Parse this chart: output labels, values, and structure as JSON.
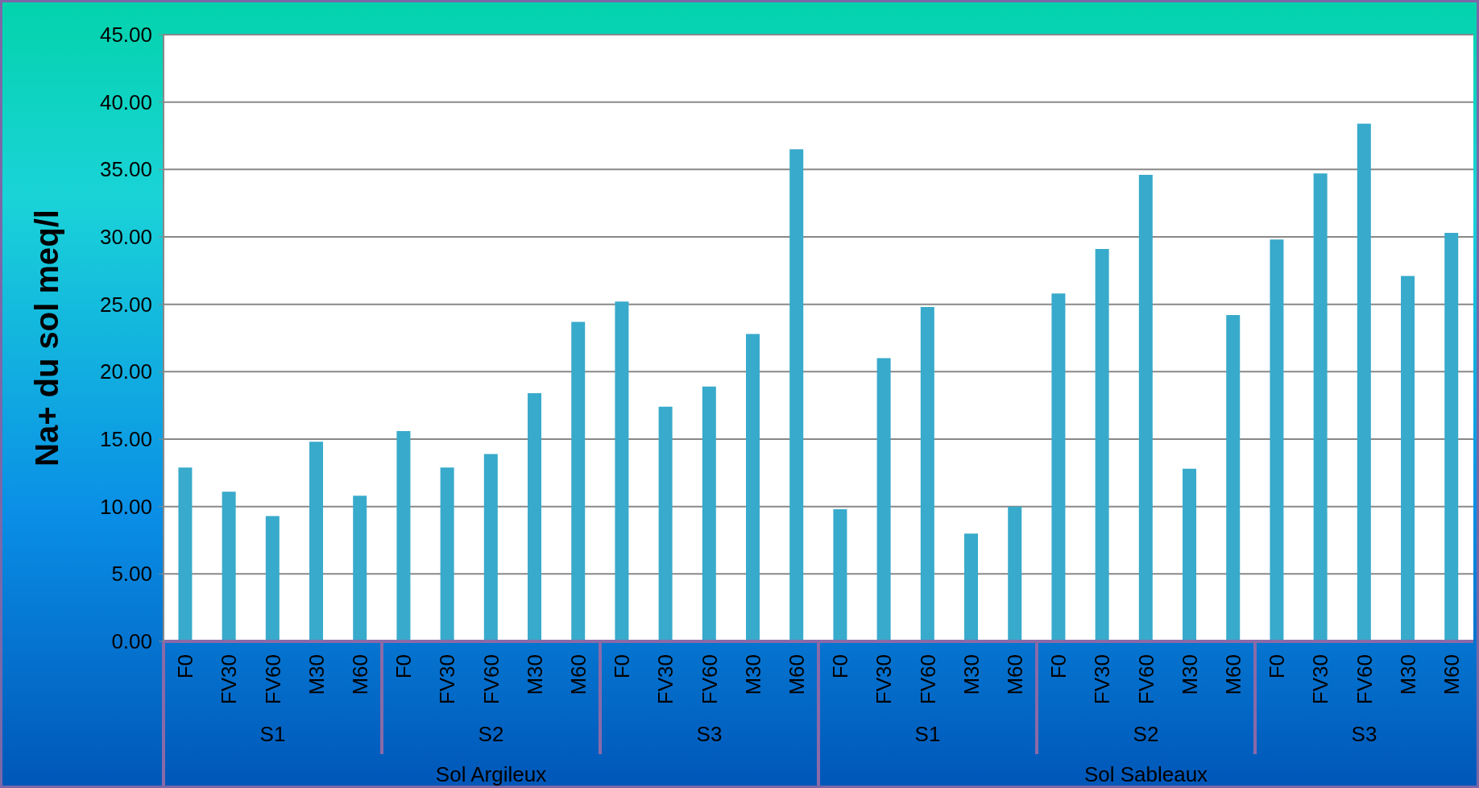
{
  "chart_data": {
    "type": "bar",
    "ylabel": "Na+ du sol meq/l",
    "categories": [
      "F0",
      "FV30",
      "FV60",
      "M30",
      "M60",
      "F0",
      "FV30",
      "FV60",
      "M30",
      "M60",
      "F0",
      "FV30",
      "FV60",
      "M30",
      "M60",
      "F0",
      "FV30",
      "FV60",
      "M30",
      "M60",
      "F0",
      "FV30",
      "FV60",
      "M30",
      "M60",
      "F0",
      "FV30",
      "FV60",
      "M30",
      "M60"
    ],
    "values": [
      12.9,
      11.1,
      9.3,
      14.8,
      10.8,
      15.6,
      12.9,
      13.9,
      18.4,
      23.7,
      25.2,
      17.4,
      18.9,
      22.8,
      36.5,
      9.8,
      21.0,
      24.8,
      8.0,
      10.0,
      25.8,
      29.1,
      34.6,
      12.8,
      24.2,
      29.8,
      34.7,
      38.4,
      27.1,
      30.3
    ],
    "color": "#38aacb",
    "ylim": [
      0,
      45
    ],
    "yticks": [
      {
        "value": 0,
        "label": "0.00"
      },
      {
        "value": 5,
        "label": "5.00"
      },
      {
        "value": 10,
        "label": "10.00"
      },
      {
        "value": 15,
        "label": "15.00"
      },
      {
        "value": 20,
        "label": "20.00"
      },
      {
        "value": 25,
        "label": "25.00"
      },
      {
        "value": 30,
        "label": "30.00"
      },
      {
        "value": 35,
        "label": "35.00"
      },
      {
        "value": 40,
        "label": "40.00"
      },
      {
        "value": 45,
        "label": "45.00"
      }
    ],
    "grid": "y",
    "annotations": [
      "S1",
      "S2",
      "S3",
      "S1",
      "S2",
      "S3",
      "Sol Argileux",
      "Sol Sableaux"
    ]
  }
}
